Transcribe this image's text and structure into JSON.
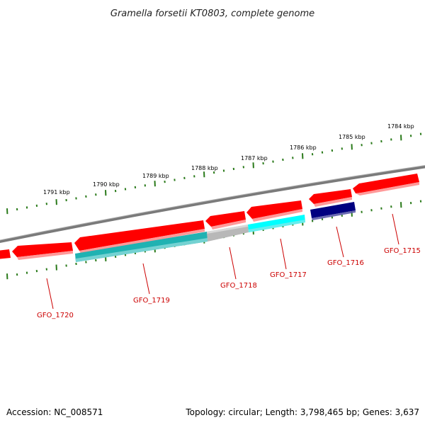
{
  "title": "Gramella forsetii KT0803, complete genome",
  "footer": {
    "accession": "Accession: NC_008571",
    "summary": "Topology: circular; Length: 3,798,465 bp; Genes: 3,637"
  },
  "colors": {
    "backbone": "#808080",
    "tick": "#2a7a1a",
    "label": "#cc0000",
    "gene_red": "#ff0000",
    "gene_teal": "#20b2b2",
    "gene_gray": "#b8b8b8",
    "gene_cyan": "#00ffff",
    "gene_navy": "#000080"
  },
  "ruler_labels": [
    "1784 kbp",
    "1785 kbp",
    "1786 kbp",
    "1787 kbp",
    "1788 kbp",
    "1789 kbp",
    "1790 kbp",
    "1791 kbp"
  ],
  "genes": [
    {
      "label": "GFO_1715",
      "color": "#ff0000",
      "strand": "-"
    },
    {
      "label": "GFO_1716",
      "color": "#000080",
      "strand": "+"
    },
    {
      "label": "GFO_1717",
      "color": "#00ffff",
      "strand": "+"
    },
    {
      "label": "GFO_1718",
      "color": "#b8b8b8",
      "strand": "+"
    },
    {
      "label": "GFO_1719",
      "color": "#20b2b2",
      "strand": "+"
    },
    {
      "label": "GFO_1720",
      "color": "#ff0000",
      "strand": "-"
    }
  ]
}
